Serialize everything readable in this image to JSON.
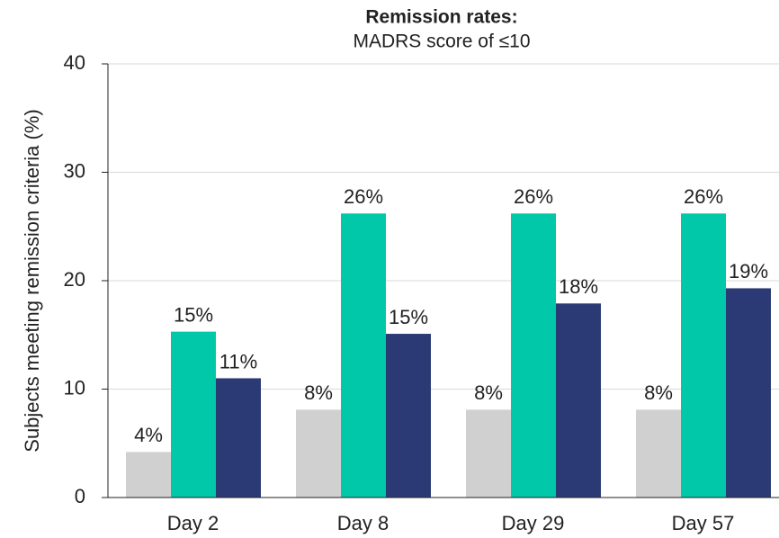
{
  "chart_data": {
    "type": "bar",
    "title": "Remission rates:",
    "subtitle": "MADRS score of ≤10",
    "y_label": "Subjects meeting remission criteria  (%)",
    "categories": [
      "Day 2",
      "Day 8",
      "Day 29",
      "Day 57"
    ],
    "series": [
      {
        "color": "#d0d0d0",
        "values": [
          4.2,
          8.1,
          8.1,
          8.1
        ],
        "value_labels": [
          "4%",
          "8%",
          "8%",
          "8%"
        ]
      },
      {
        "color": "#00c8a8",
        "values": [
          15.3,
          26.2,
          26.2,
          26.2
        ],
        "value_labels": [
          "15%",
          "26%",
          "26%",
          "26%"
        ]
      },
      {
        "color": "#2b3a75",
        "values": [
          11.0,
          15.1,
          17.9,
          19.3
        ],
        "value_labels": [
          "11%",
          "15%",
          "18%",
          "19%"
        ]
      }
    ],
    "ylim": [
      0,
      40
    ],
    "yticks": [
      0,
      10,
      20,
      30,
      40
    ],
    "grid": true
  }
}
